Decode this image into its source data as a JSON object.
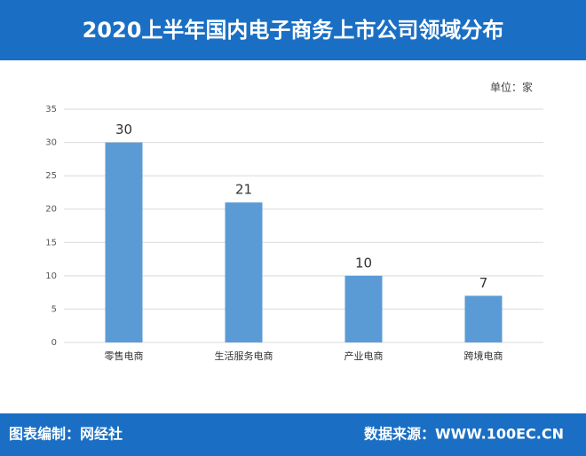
{
  "chart_data": {
    "type": "bar",
    "title": "2020上半年国内电子商务上市公司领域分布",
    "unit": "单位：家",
    "categories": [
      "零售电商",
      "生活服务电商",
      "产业电商",
      "跨境电商"
    ],
    "values": [
      30,
      21,
      10,
      7
    ],
    "color": "#5b9bd5",
    "ylim": [
      0,
      35
    ],
    "yticks": [
      0,
      5,
      10,
      15,
      20,
      25,
      30,
      35
    ],
    "grid": true,
    "footer_left": "图表编制：网经社",
    "footer_right": "数据来源：WWW.100EC.CN"
  }
}
